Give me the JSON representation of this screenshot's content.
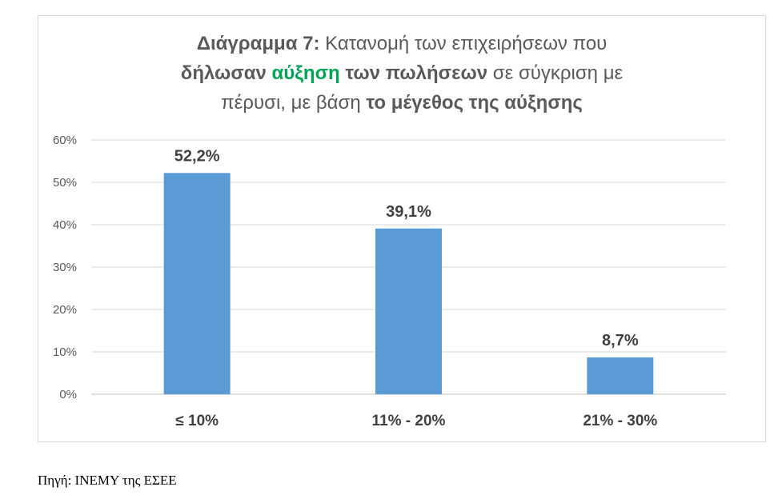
{
  "colors": {
    "bar": "#5b9bd5",
    "highlight": "#00a651",
    "gridline": "#d9d9d9",
    "axis": "#bfbfbf",
    "text": "#595959"
  },
  "title": {
    "line1": {
      "bold": "Διάγραμμα 7:",
      "normal": " Κατανομή των επιχειρήσεων που"
    },
    "line2": {
      "bold_a": "δήλωσαν ",
      "highlight": "αύξηση",
      "bold_b": " των πωλήσεων",
      "normal": " σε σύγκριση με"
    },
    "line3": {
      "normal": "πέρυσι, με βάση ",
      "bold": "το μέγεθος της αύξησης"
    }
  },
  "chart_data": {
    "type": "bar",
    "title": "Διάγραμμα 7: Κατανομή των επιχειρήσεων που δήλωσαν αύξηση των πωλήσεων σε σύγκριση με πέρυσι, με βάση το μέγεθος της αύξησης",
    "categories": [
      "≤ 10%",
      "11% - 20%",
      "21% - 30%"
    ],
    "values": [
      52.2,
      39.1,
      8.7
    ],
    "data_labels": [
      "52,2%",
      "39,1%",
      "8,7%"
    ],
    "ylim": [
      0,
      60
    ],
    "yticks": [
      0,
      10,
      20,
      30,
      40,
      50,
      60
    ],
    "ytick_labels": [
      "0%",
      "10%",
      "20%",
      "30%",
      "40%",
      "50%",
      "60%"
    ],
    "grid": true,
    "legend": "none",
    "xlabel": "",
    "ylabel": ""
  },
  "source": "Πηγή: ΙΝΕΜΥ της ΕΣΕΕ"
}
